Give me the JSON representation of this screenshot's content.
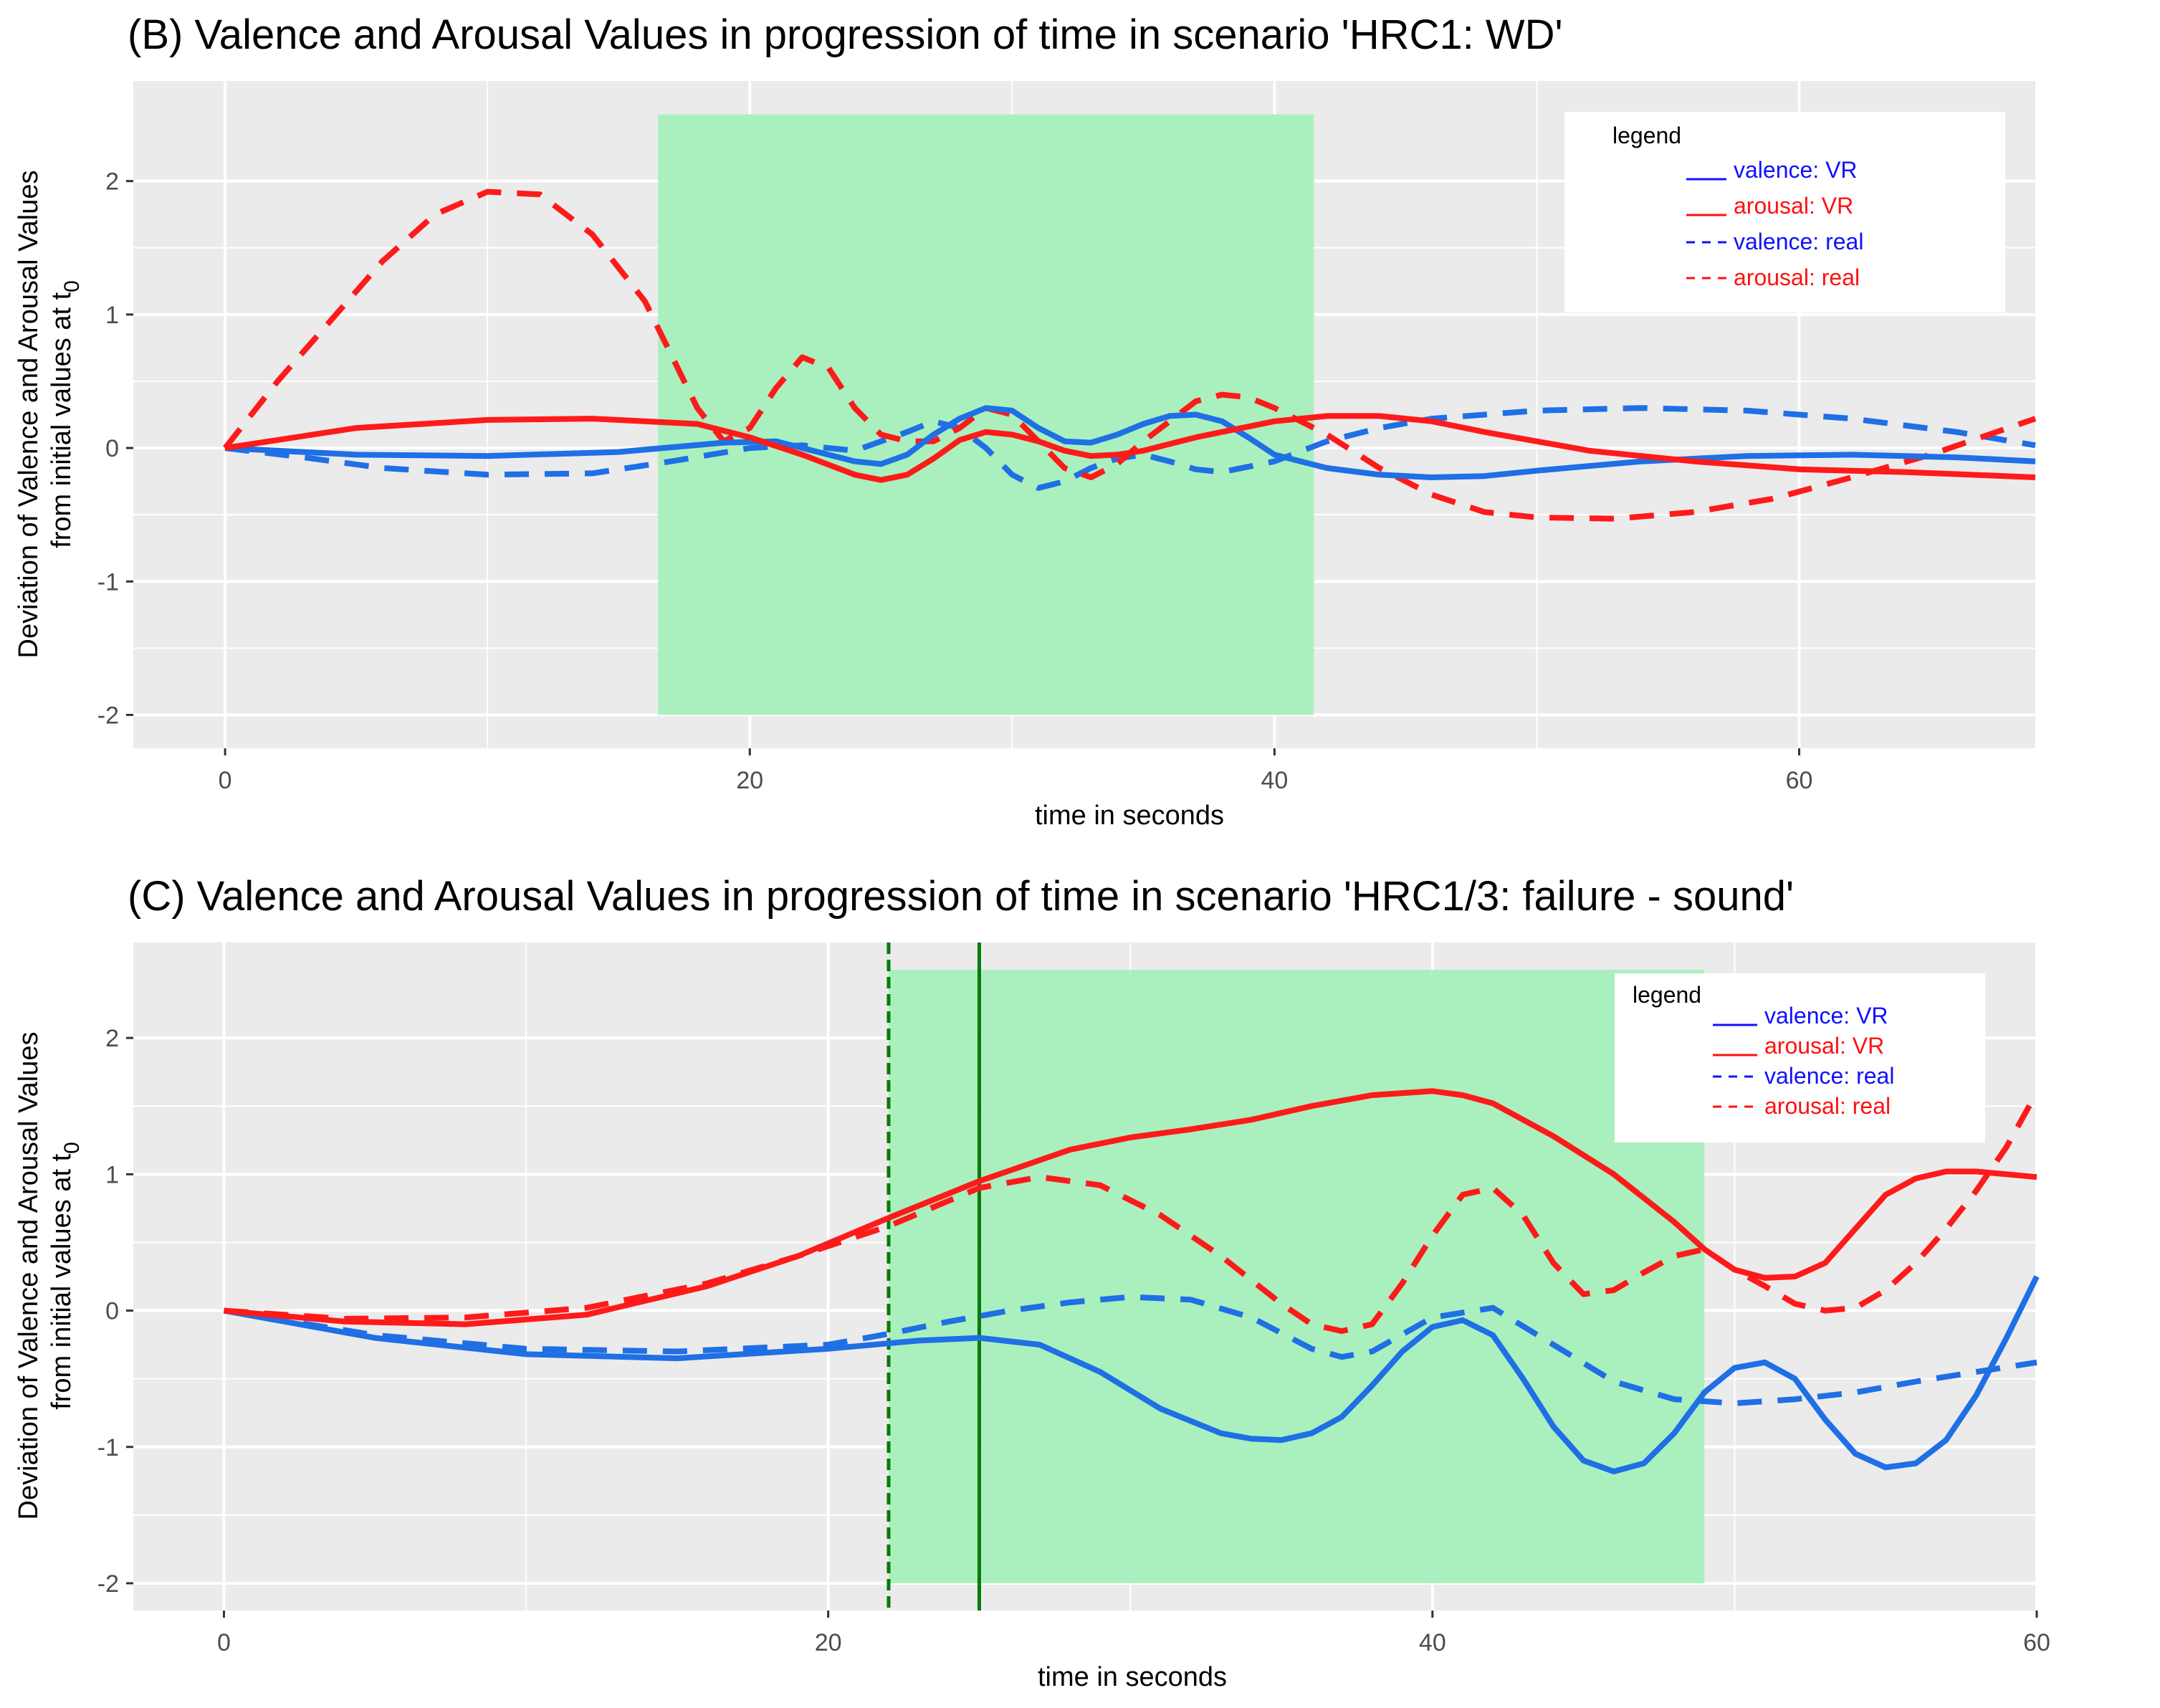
{
  "chart_data": [
    {
      "type": "line",
      "title": "(B) Valence and Arousal Values in progression of time in scenario 'HRC1: WD'",
      "xlabel": "time in seconds",
      "ylabel_line1": "Deviation of Valence and Arousal Values",
      "ylabel_line2_main": "from initial values at t",
      "ylabel_line2_sub": "0",
      "xlim": [
        -3.5,
        69
      ],
      "ylim": [
        -2.25,
        2.75
      ],
      "x_ticks": [
        0,
        20,
        40,
        60
      ],
      "x_tick_labels": [
        "0",
        "20",
        "40",
        "60"
      ],
      "y_ticks": [
        -2,
        -1,
        0,
        1,
        2
      ],
      "y_tick_labels": [
        "-2",
        "-1",
        "0",
        "1",
        "2"
      ],
      "grid": true,
      "highlight": {
        "x0": 16.5,
        "x1": 41.5,
        "y0": -2,
        "y1": 2.5,
        "color": "#a6f0bd"
      },
      "vlines": [],
      "legend": {
        "title": "legend",
        "placement": "top-right",
        "entries": [
          {
            "name": "valence:  VR",
            "color": "#1010ff",
            "dash": "solid"
          },
          {
            "name": "arousal:   VR",
            "color": "#ff1010",
            "dash": "solid"
          },
          {
            "name": "valence:  real",
            "color": "#1010ff",
            "dash": "dashed"
          },
          {
            "name": "arousal:  real",
            "color": "#ff1010",
            "dash": "dashed"
          }
        ]
      },
      "series": [
        {
          "name": "valence: VR",
          "color": "#1f6fe5",
          "dash": "solid",
          "x": [
            0,
            5,
            10,
            15,
            19,
            21,
            23,
            24,
            25,
            26,
            27,
            28,
            29,
            30,
            31,
            32,
            33,
            34,
            35,
            36,
            37,
            38,
            39,
            40,
            41,
            42,
            44,
            46,
            48,
            50,
            54,
            58,
            62,
            66,
            69
          ],
          "y": [
            0,
            -0.05,
            -0.06,
            -0.03,
            0.04,
            0.05,
            -0.05,
            -0.1,
            -0.12,
            -0.05,
            0.1,
            0.22,
            0.3,
            0.28,
            0.15,
            0.05,
            0.04,
            0.1,
            0.18,
            0.24,
            0.25,
            0.2,
            0.08,
            -0.05,
            -0.1,
            -0.15,
            -0.2,
            -0.22,
            -0.21,
            -0.17,
            -0.1,
            -0.06,
            -0.05,
            -0.07,
            -0.1
          ]
        },
        {
          "name": "arousal: VR",
          "color": "#ff1a1a",
          "dash": "solid",
          "x": [
            0,
            5,
            10,
            14,
            18,
            20,
            22,
            24,
            25,
            26,
            27,
            28,
            29,
            30,
            31,
            32,
            33,
            34,
            35,
            36,
            37,
            38,
            40,
            42,
            44,
            46,
            48,
            52,
            56,
            60,
            64,
            69
          ],
          "y": [
            0,
            0.15,
            0.21,
            0.22,
            0.18,
            0.08,
            -0.05,
            -0.2,
            -0.24,
            -0.2,
            -0.08,
            0.06,
            0.12,
            0.1,
            0.05,
            -0.02,
            -0.06,
            -0.05,
            -0.02,
            0.03,
            0.08,
            0.12,
            0.2,
            0.24,
            0.24,
            0.2,
            0.12,
            -0.02,
            -0.1,
            -0.16,
            -0.18,
            -0.22
          ]
        },
        {
          "name": "valence: real",
          "color": "#1f6fe5",
          "dash": "dashed",
          "x": [
            0,
            3,
            6,
            10,
            14,
            17,
            20,
            22,
            24,
            26,
            27,
            28,
            29,
            30,
            31,
            32,
            33,
            34,
            35,
            36,
            37,
            38,
            40,
            42,
            44,
            46,
            50,
            54,
            58,
            62,
            66,
            69
          ],
          "y": [
            0,
            -0.07,
            -0.15,
            -0.2,
            -0.19,
            -0.1,
            0,
            0.02,
            -0.02,
            0.12,
            0.2,
            0.15,
            0.0,
            -0.2,
            -0.3,
            -0.25,
            -0.15,
            -0.08,
            -0.05,
            -0.1,
            -0.16,
            -0.18,
            -0.1,
            0.05,
            0.15,
            0.22,
            0.28,
            0.3,
            0.28,
            0.22,
            0.12,
            0.02
          ]
        },
        {
          "name": "arousal: real",
          "color": "#ff1a1a",
          "dash": "dashed",
          "x": [
            0,
            2,
            4,
            6,
            8,
            10,
            12,
            14,
            16,
            17,
            18,
            19,
            20,
            21,
            22,
            23,
            24,
            25,
            26,
            27,
            28,
            29,
            30,
            31,
            32,
            33,
            34,
            35,
            36,
            37,
            38,
            39,
            40,
            42,
            44,
            46,
            48,
            50,
            53,
            56,
            59,
            62,
            65,
            69
          ],
          "y": [
            0,
            0.5,
            0.95,
            1.4,
            1.75,
            1.92,
            1.9,
            1.6,
            1.1,
            0.7,
            0.3,
            0.05,
            0.15,
            0.45,
            0.68,
            0.6,
            0.3,
            0.1,
            0.05,
            0.05,
            0.15,
            0.3,
            0.25,
            0.05,
            -0.15,
            -0.22,
            -0.12,
            0.05,
            0.2,
            0.35,
            0.4,
            0.38,
            0.3,
            0.1,
            -0.15,
            -0.35,
            -0.48,
            -0.52,
            -0.53,
            -0.48,
            -0.38,
            -0.22,
            -0.05,
            0.22
          ]
        }
      ]
    },
    {
      "type": "line",
      "title": "(C) Valence and Arousal Values in progression of time in scenario 'HRC1/3: failure - sound'",
      "xlabel": "time in seconds",
      "ylabel_line1": "Deviation of Valence and Arousal Values",
      "ylabel_line2_main": "from initial values at t",
      "ylabel_line2_sub": "0",
      "xlim": [
        -3,
        60
      ],
      "ylim": [
        -2.2,
        2.7
      ],
      "x_ticks": [
        0,
        20,
        40,
        60
      ],
      "x_tick_labels": [
        "0",
        "20",
        "40",
        "60"
      ],
      "y_ticks": [
        -2,
        -1,
        0,
        1,
        2
      ],
      "y_tick_labels": [
        "-2",
        "-1",
        "0",
        "1",
        "2"
      ],
      "grid": true,
      "highlight": {
        "x0": 22,
        "x1": 49,
        "y0": -2,
        "y1": 2.5,
        "color": "#a6f0bd"
      },
      "vlines": [
        {
          "x": 22,
          "color": "#087a08",
          "dash": "dashed"
        },
        {
          "x": 25,
          "color": "#087a08",
          "dash": "solid"
        }
      ],
      "legend": {
        "title": "legend",
        "placement": "top-right",
        "entries": [
          {
            "name": "valence:  VR",
            "color": "#1010ff",
            "dash": "solid"
          },
          {
            "name": "arousal:   VR",
            "color": "#ff1010",
            "dash": "solid"
          },
          {
            "name": "valence:  real",
            "color": "#1010ff",
            "dash": "dashed"
          },
          {
            "name": "arousal:  real",
            "color": "#ff1010",
            "dash": "dashed"
          }
        ]
      },
      "series": [
        {
          "name": "valence: VR",
          "color": "#1f6fe5",
          "dash": "solid",
          "x": [
            0,
            5,
            10,
            15,
            20,
            23,
            25,
            27,
            29,
            31,
            33,
            34,
            35,
            36,
            37,
            38,
            39,
            40,
            41,
            42,
            43,
            44,
            45,
            46,
            47,
            48,
            49,
            50,
            51,
            52,
            53,
            54,
            55,
            56,
            57,
            58,
            59,
            60
          ],
          "y": [
            0,
            -0.2,
            -0.32,
            -0.35,
            -0.28,
            -0.22,
            -0.2,
            -0.25,
            -0.45,
            -0.72,
            -0.9,
            -0.94,
            -0.95,
            -0.9,
            -0.78,
            -0.55,
            -0.3,
            -0.12,
            -0.07,
            -0.18,
            -0.5,
            -0.85,
            -1.1,
            -1.18,
            -1.12,
            -0.9,
            -0.6,
            -0.42,
            -0.38,
            -0.5,
            -0.8,
            -1.05,
            -1.15,
            -1.12,
            -0.95,
            -0.62,
            -0.2,
            0.25
          ]
        },
        {
          "name": "arousal: VR",
          "color": "#ff1a1a",
          "dash": "solid",
          "x": [
            0,
            4,
            8,
            12,
            16,
            19,
            22,
            25,
            28,
            30,
            32,
            34,
            36,
            38,
            40,
            41,
            42,
            44,
            46,
            48,
            49,
            50,
            51,
            52,
            53,
            54,
            55,
            56,
            57,
            58,
            59,
            60
          ],
          "y": [
            0,
            -0.08,
            -0.1,
            -0.03,
            0.18,
            0.4,
            0.68,
            0.95,
            1.18,
            1.27,
            1.33,
            1.4,
            1.5,
            1.58,
            1.61,
            1.58,
            1.52,
            1.28,
            1.0,
            0.65,
            0.45,
            0.3,
            0.24,
            0.25,
            0.35,
            0.6,
            0.85,
            0.97,
            1.02,
            1.02,
            1.0,
            0.98
          ]
        },
        {
          "name": "valence: real",
          "color": "#1f6fe5",
          "dash": "dashed",
          "x": [
            0,
            5,
            10,
            15,
            20,
            22,
            24,
            26,
            28,
            30,
            32,
            34,
            36,
            37,
            38,
            40,
            42,
            44,
            46,
            48,
            50,
            52,
            54,
            56,
            58,
            60
          ],
          "y": [
            0,
            -0.18,
            -0.28,
            -0.3,
            -0.25,
            -0.17,
            -0.08,
            0,
            0.06,
            0.1,
            0.08,
            -0.05,
            -0.28,
            -0.34,
            -0.3,
            -0.05,
            0.02,
            -0.25,
            -0.52,
            -0.65,
            -0.68,
            -0.65,
            -0.6,
            -0.52,
            -0.45,
            -0.38
          ]
        },
        {
          "name": "arousal: real",
          "color": "#ff1a1a",
          "dash": "dashed",
          "x": [
            0,
            4,
            8,
            12,
            16,
            19,
            22,
            25,
            27,
            29,
            31,
            33,
            35,
            36,
            37,
            38,
            39,
            40,
            41,
            42,
            43,
            44,
            45,
            46,
            47,
            48,
            49,
            50,
            51,
            52,
            53,
            54,
            55,
            56,
            57,
            58,
            59,
            60
          ],
          "y": [
            0,
            -0.06,
            -0.05,
            0.02,
            0.2,
            0.4,
            0.62,
            0.9,
            0.98,
            0.92,
            0.7,
            0.4,
            0.05,
            -0.1,
            -0.15,
            -0.1,
            0.2,
            0.55,
            0.85,
            0.9,
            0.7,
            0.35,
            0.12,
            0.15,
            0.28,
            0.4,
            0.45,
            0.3,
            0.18,
            0.05,
            0.0,
            0.02,
            0.15,
            0.35,
            0.6,
            0.88,
            1.2,
            1.6
          ]
        }
      ]
    }
  ]
}
